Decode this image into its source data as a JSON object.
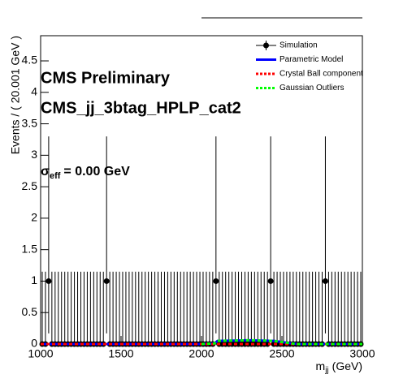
{
  "chart_data": {
    "type": "errorbar",
    "annotations": [
      "CMS Preliminary",
      "CMS_jj_3btag_HPLP_cat2"
    ],
    "sigma_label": {
      "symbol": "σ",
      "subscript": "eff",
      "text": "= 0.00 GeV"
    },
    "xlabel": {
      "text": "m",
      "subscript": "jj",
      "unit": "(GeV)"
    },
    "ylabel": "Events / ( 20.001 GeV )",
    "xlim": [
      1000,
      3000
    ],
    "xticks": [
      1000,
      1500,
      2000,
      2500,
      3000
    ],
    "ylim": [
      0,
      4.9
    ],
    "yticks": [
      0,
      0.5,
      1,
      1.5,
      2,
      2.5,
      3,
      3.5,
      4,
      4.5
    ],
    "legend": "top-right",
    "x": [
      1010,
      1030,
      1050,
      1070,
      1090,
      1110,
      1130,
      1150,
      1170,
      1190,
      1210,
      1230,
      1250,
      1270,
      1290,
      1310,
      1330,
      1350,
      1370,
      1390,
      1410,
      1430,
      1450,
      1470,
      1490,
      1510,
      1530,
      1550,
      1570,
      1590,
      1610,
      1630,
      1650,
      1670,
      1690,
      1710,
      1730,
      1750,
      1770,
      1790,
      1810,
      1830,
      1850,
      1870,
      1890,
      1910,
      1930,
      1950,
      1970,
      1990,
      2010,
      2030,
      2050,
      2070,
      2090,
      2110,
      2130,
      2150,
      2170,
      2190,
      2210,
      2230,
      2250,
      2270,
      2290,
      2310,
      2330,
      2350,
      2370,
      2390,
      2410,
      2430,
      2450,
      2470,
      2490,
      2510,
      2530,
      2550,
      2570,
      2590,
      2610,
      2630,
      2650,
      2670,
      2690,
      2710,
      2730,
      2750,
      2770,
      2790,
      2810,
      2830,
      2850,
      2870,
      2890,
      2910,
      2930,
      2950,
      2970,
      2990
    ],
    "series": [
      {
        "name": "Simulation",
        "color": "#000000",
        "kind": "points",
        "values": [
          0,
          0,
          1,
          0,
          0,
          0,
          0,
          0,
          0,
          0,
          0,
          0,
          0,
          0,
          0,
          0,
          0,
          0,
          0,
          0,
          1,
          0,
          0,
          0,
          0,
          0,
          0,
          0,
          0,
          0,
          0,
          0,
          0,
          0,
          0,
          0,
          0,
          0,
          0,
          0,
          0,
          0,
          0,
          0,
          0,
          0,
          0,
          0,
          0,
          0,
          0,
          0,
          0,
          0,
          1,
          0,
          0,
          0,
          0,
          0,
          0,
          0,
          0,
          0,
          0,
          0,
          0,
          0,
          0,
          0,
          0,
          1,
          0,
          0,
          0,
          0,
          0,
          0,
          0,
          0,
          0,
          0,
          0,
          0,
          0,
          0,
          0,
          0,
          1,
          0,
          0,
          0,
          0,
          0,
          0,
          0,
          0,
          0,
          0,
          0
        ],
        "err_high": [
          1.15,
          1.15,
          2.3,
          1.15,
          1.15,
          1.15,
          1.15,
          1.15,
          1.15,
          1.15,
          1.15,
          1.15,
          1.15,
          1.15,
          1.15,
          1.15,
          1.15,
          1.15,
          1.15,
          1.15,
          2.3,
          1.15,
          1.15,
          1.15,
          1.15,
          1.15,
          1.15,
          1.15,
          1.15,
          1.15,
          1.15,
          1.15,
          1.15,
          1.15,
          1.15,
          1.15,
          1.15,
          1.15,
          1.15,
          1.15,
          1.15,
          1.15,
          1.15,
          1.15,
          1.15,
          1.15,
          1.15,
          1.15,
          1.15,
          1.15,
          1.15,
          1.15,
          1.15,
          1.15,
          2.3,
          1.15,
          1.15,
          1.15,
          1.15,
          1.15,
          1.15,
          1.15,
          1.15,
          1.15,
          1.15,
          1.15,
          1.15,
          1.15,
          1.15,
          1.15,
          1.15,
          2.3,
          1.15,
          1.15,
          1.15,
          1.15,
          1.15,
          1.15,
          1.15,
          1.15,
          1.15,
          1.15,
          1.15,
          1.15,
          1.15,
          1.15,
          1.15,
          1.15,
          2.3,
          1.15,
          1.15,
          1.15,
          1.15,
          1.15,
          1.15,
          1.15,
          1.15,
          1.15,
          1.15,
          1.15
        ],
        "err_low": [
          0,
          0,
          0.83,
          0,
          0,
          0,
          0,
          0,
          0,
          0,
          0,
          0,
          0,
          0,
          0,
          0,
          0,
          0,
          0,
          0,
          0.83,
          0,
          0,
          0,
          0,
          0,
          0,
          0,
          0,
          0,
          0,
          0,
          0,
          0,
          0,
          0,
          0,
          0,
          0,
          0,
          0,
          0,
          0,
          0,
          0,
          0,
          0,
          0,
          0,
          0,
          0,
          0,
          0,
          0,
          0.83,
          0,
          0,
          0,
          0,
          0,
          0,
          0,
          0,
          0,
          0,
          0,
          0,
          0,
          0,
          0,
          0,
          0.83,
          0,
          0,
          0,
          0,
          0,
          0,
          0,
          0,
          0,
          0,
          0,
          0,
          0,
          0,
          0,
          0,
          0.83,
          0,
          0,
          0,
          0,
          0,
          0,
          0,
          0,
          0,
          0,
          0
        ]
      },
      {
        "name": "Parametric Model",
        "color": "#0000ff",
        "kind": "solid",
        "x": [
          1000,
          2000,
          2080,
          2100,
          2300,
          2450,
          2560,
          2600,
          3000
        ],
        "values": [
          0,
          0,
          0.01,
          0.05,
          0.06,
          0.05,
          0.01,
          0,
          0
        ]
      },
      {
        "name": "Crystal Ball component",
        "color": "#ff0000",
        "kind": "dashed",
        "x": [
          1000,
          3000
        ],
        "values": [
          0,
          0
        ]
      },
      {
        "name": "Gaussian Outliers",
        "color": "#00ff00",
        "kind": "dashed",
        "x": [
          2000,
          2080,
          2100,
          2300,
          2450,
          2560,
          2600,
          3000
        ],
        "values": [
          0,
          0.01,
          0.05,
          0.06,
          0.05,
          0.01,
          0,
          0
        ]
      }
    ]
  }
}
